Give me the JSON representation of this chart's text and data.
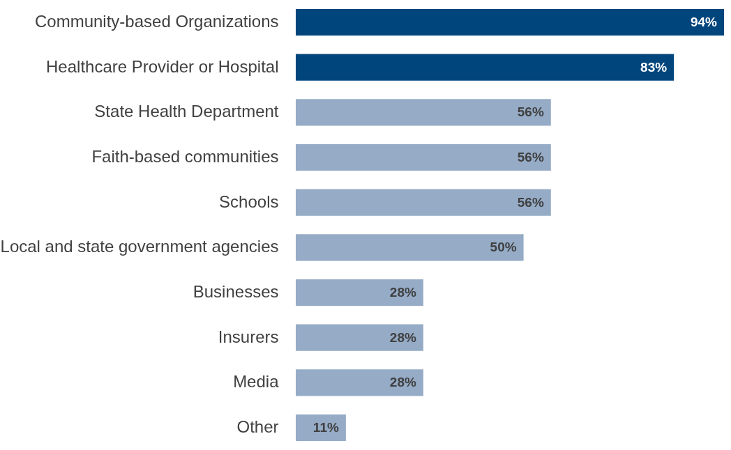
{
  "chart_data": {
    "type": "bar",
    "orientation": "horizontal",
    "categories": [
      "Community-based Organizations",
      "Healthcare Provider or Hospital",
      "State Health Department",
      "Faith-based communities",
      "Schools",
      "Local and state government agencies",
      "Businesses",
      "Insurers",
      "Media",
      "Other"
    ],
    "values": [
      94,
      83,
      56,
      56,
      56,
      50,
      28,
      28,
      28,
      11
    ],
    "colors": [
      "#00457c",
      "#00457c",
      "#95abc6",
      "#95abc6",
      "#95abc6",
      "#95abc6",
      "#95abc6",
      "#95abc6",
      "#95abc6",
      "#95abc6"
    ],
    "value_labels": [
      "94%",
      "83%",
      "56%",
      "56%",
      "56%",
      "50%",
      "28%",
      "28%",
      "28%",
      "11%"
    ]
  }
}
